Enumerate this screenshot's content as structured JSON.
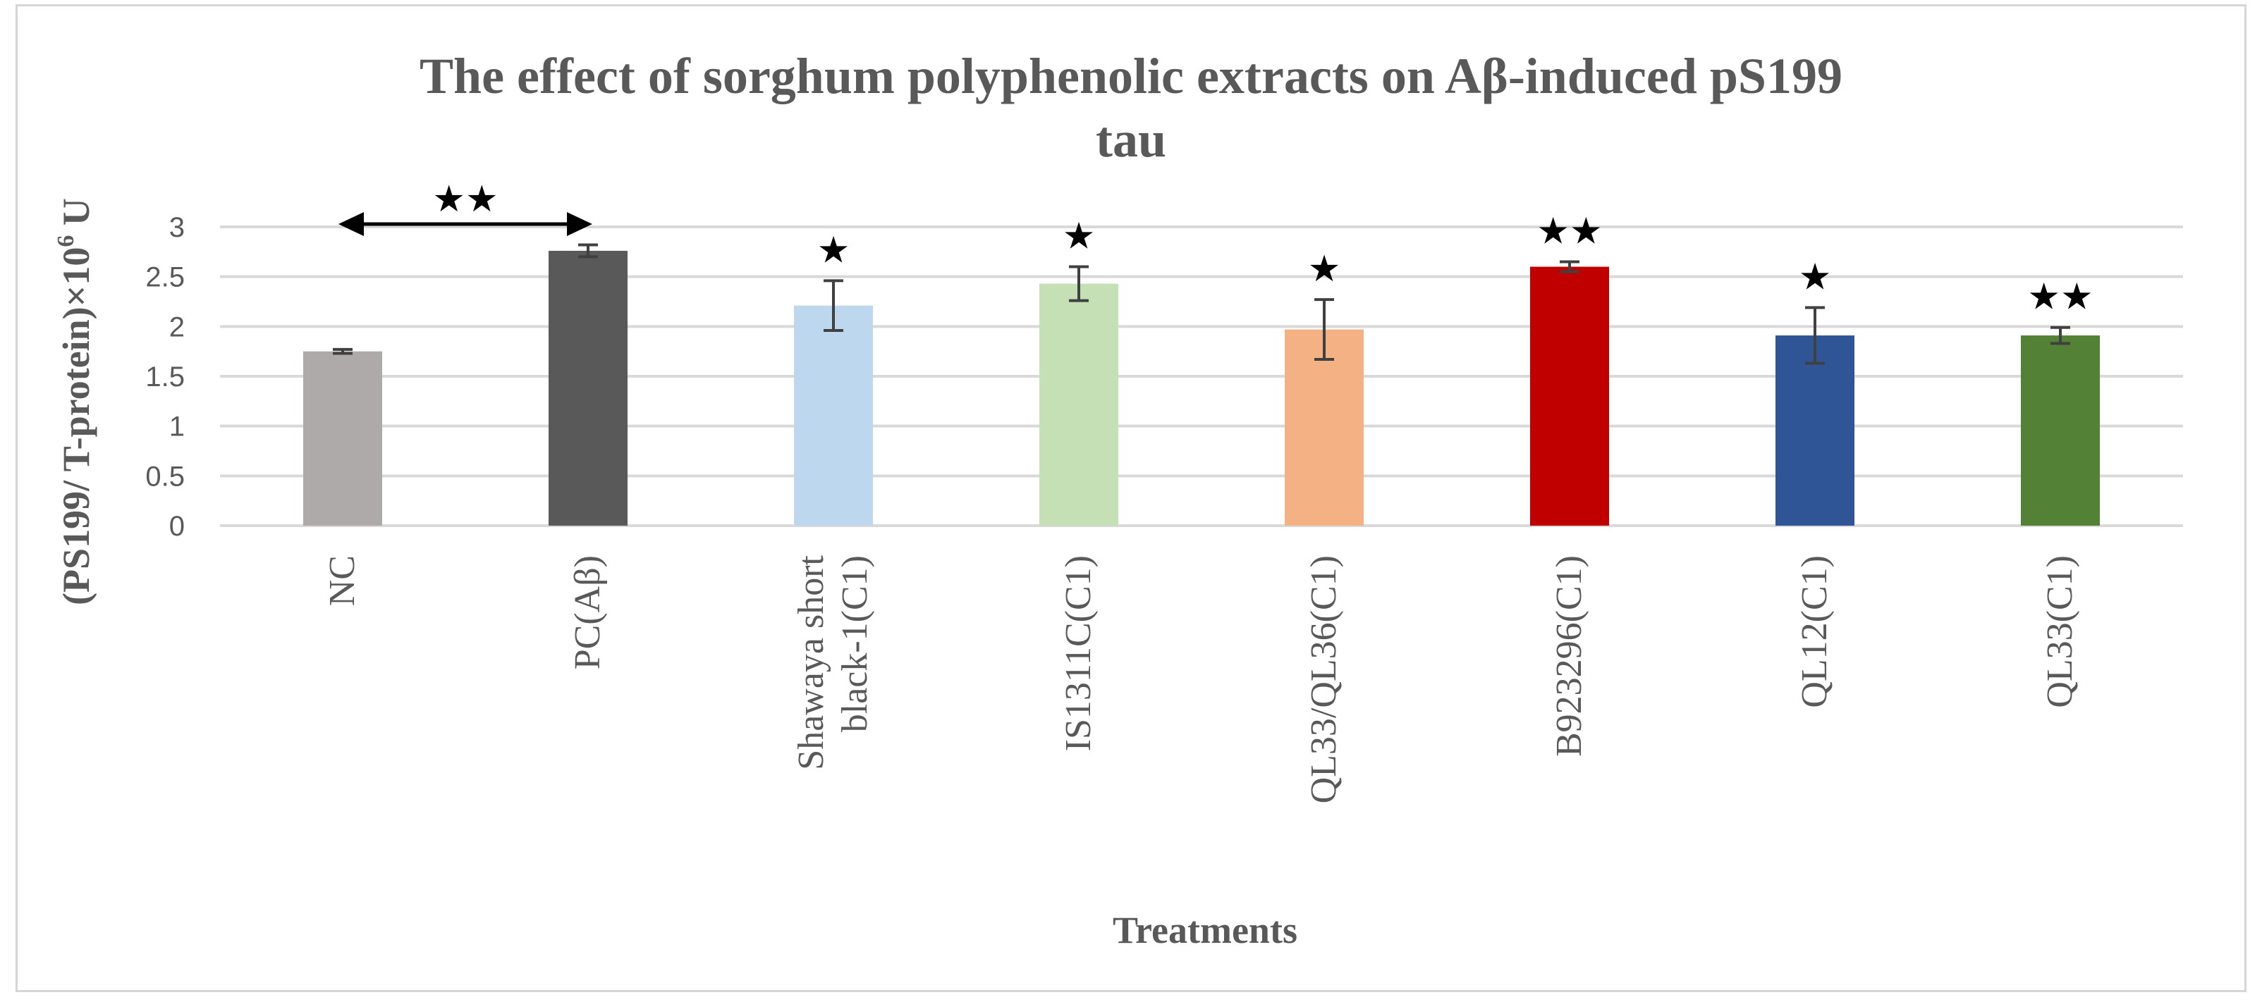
{
  "chart_data": {
    "type": "bar",
    "title_lines": [
      "The effect of sorghum polyphenolic extracts on Aβ-induced pS199",
      "tau"
    ],
    "ylabel_main": "(PS199/ T-protein)×10",
    "ylabel_sup": "6",
    "ylabel_unit": " U",
    "xlabel": "Treatments",
    "ylim": [
      0,
      3
    ],
    "yticks": [
      0,
      0.5,
      1,
      1.5,
      2,
      2.5,
      3
    ],
    "ytick_labels": [
      "0",
      "0.5",
      "1",
      "1.5",
      "2",
      "2.5",
      "3"
    ],
    "grid": true,
    "categories": [
      [
        "NC"
      ],
      [
        "PC(Aβ)"
      ],
      [
        "Shawaya short",
        "black-1(C1)"
      ],
      [
        "IS1311C(C1)"
      ],
      [
        "QL33/QL36(C1)"
      ],
      [
        "B923296(C1)"
      ],
      [
        "QL12(C1)"
      ],
      [
        "QL33(C1)"
      ]
    ],
    "values": [
      1.75,
      2.76,
      2.21,
      2.43,
      1.97,
      2.6,
      1.91,
      1.91
    ],
    "errors": [
      0.02,
      0.06,
      0.25,
      0.17,
      0.3,
      0.05,
      0.28,
      0.08
    ],
    "colors": [
      "#aeaaaa",
      "#595959",
      "#bdd7ee",
      "#c5e0b4",
      "#f4b183",
      "#c00000",
      "#2f5597",
      "#538135"
    ],
    "significance": [
      "",
      "",
      "★",
      "★",
      "★",
      "★★",
      "★",
      "★★"
    ],
    "comparison": {
      "from": 0,
      "to": 1,
      "label": "★★"
    }
  }
}
